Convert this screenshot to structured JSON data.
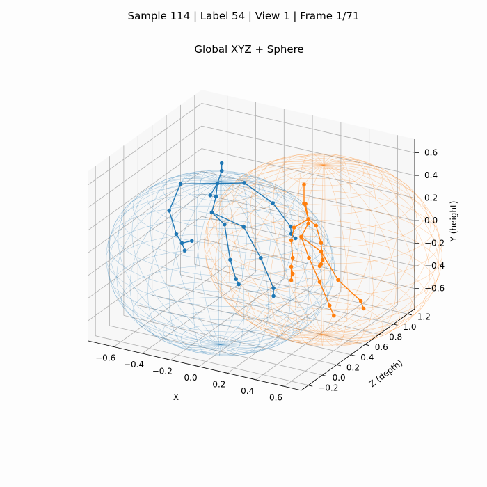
{
  "figure": {
    "suptitle": "Sample 114  |  Label 54  |  View 1  |  Frame 1/71",
    "title": "Global XYZ + Sphere"
  },
  "chart_data": {
    "type": "scatter3d",
    "xlabel": "X",
    "ylabel": "Y (height)",
    "zlabel": "Z (depth)",
    "x_ticks": [
      "−0.6",
      "−0.4",
      "−0.2",
      "0.0",
      "0.2",
      "0.4",
      "0.6"
    ],
    "y_ticks": [
      "−0.6",
      "−0.4",
      "−0.2",
      "0.0",
      "0.2",
      "0.4",
      "0.6"
    ],
    "z_ticks": [
      "−0.2",
      "0.0",
      "0.2",
      "0.4",
      "0.6",
      "0.8",
      "1.0",
      "1.2"
    ],
    "series": [
      {
        "color": "#1f77b4",
        "sphere": {
          "center": [
            0.0,
            0.0,
            0.0
          ],
          "radius": 0.72
        },
        "joints": [
          [
            -0.32,
            0.12,
            0.52
          ],
          [
            -0.28,
            0.28,
            0.5
          ],
          [
            -0.27,
            0.4,
            0.5
          ],
          [
            -0.24,
            0.52,
            0.5
          ],
          [
            -0.23,
            0.6,
            0.48
          ],
          [
            -0.48,
            0.38,
            0.4
          ],
          [
            -0.56,
            0.12,
            0.4
          ],
          [
            -0.5,
            -0.06,
            0.38
          ],
          [
            -0.47,
            -0.14,
            0.4
          ],
          [
            -0.45,
            -0.2,
            0.4
          ],
          [
            -0.08,
            0.46,
            0.5
          ],
          [
            0.12,
            0.34,
            0.5
          ],
          [
            0.22,
            0.14,
            0.55
          ],
          [
            0.22,
            0.07,
            0.56
          ],
          [
            0.25,
            0.04,
            0.56
          ],
          [
            -0.4,
            -0.1,
            0.4
          ],
          [
            -0.18,
            0.1,
            0.42
          ],
          [
            -0.14,
            -0.2,
            0.42
          ],
          [
            -0.1,
            -0.36,
            0.42
          ],
          [
            -0.08,
            -0.4,
            0.42
          ],
          [
            -0.06,
            0.1,
            0.45
          ],
          [
            0.06,
            -0.14,
            0.45
          ],
          [
            0.15,
            -0.38,
            0.45
          ],
          [
            0.15,
            -0.45,
            0.45
          ],
          [
            -0.32,
            0.28,
            0.5
          ]
        ],
        "bones": [
          [
            0,
            1
          ],
          [
            1,
            2
          ],
          [
            2,
            3
          ],
          [
            3,
            4
          ],
          [
            2,
            5
          ],
          [
            5,
            6
          ],
          [
            6,
            7
          ],
          [
            7,
            8
          ],
          [
            8,
            9
          ],
          [
            2,
            10
          ],
          [
            10,
            11
          ],
          [
            11,
            12
          ],
          [
            12,
            13
          ],
          [
            13,
            14
          ],
          [
            15,
            8
          ],
          [
            0,
            16
          ],
          [
            16,
            17
          ],
          [
            17,
            18
          ],
          [
            18,
            19
          ],
          [
            0,
            20
          ],
          [
            20,
            21
          ],
          [
            21,
            22
          ],
          [
            22,
            23
          ],
          [
            24,
            2
          ]
        ]
      },
      {
        "color": "#ff7f0e",
        "sphere": {
          "center": [
            0.45,
            0.0,
            0.55
          ],
          "radius": 0.75
        },
        "joints": [
          [
            0.32,
            0.1,
            0.5
          ],
          [
            0.36,
            0.22,
            0.52
          ],
          [
            0.36,
            0.26,
            0.52
          ],
          [
            0.34,
            0.4,
            0.5
          ],
          [
            0.35,
            0.58,
            0.48
          ],
          [
            0.28,
            0.18,
            0.48
          ],
          [
            0.26,
            0.06,
            0.48
          ],
          [
            0.28,
            -0.08,
            0.46
          ],
          [
            0.27,
            -0.16,
            0.46
          ],
          [
            0.28,
            -0.22,
            0.46
          ],
          [
            0.4,
            0.2,
            0.55
          ],
          [
            0.42,
            0.04,
            0.58
          ],
          [
            0.42,
            -0.12,
            0.6
          ],
          [
            0.41,
            -0.16,
            0.6
          ],
          [
            0.4,
            -0.18,
            0.6
          ],
          [
            0.27,
            -0.28,
            0.46
          ],
          [
            0.35,
            -0.1,
            0.55
          ],
          [
            0.4,
            -0.32,
            0.6
          ],
          [
            0.46,
            -0.52,
            0.62
          ],
          [
            0.49,
            -0.6,
            0.62
          ],
          [
            0.4,
            -0.06,
            0.62
          ],
          [
            0.5,
            -0.3,
            0.66
          ],
          [
            0.66,
            -0.44,
            0.66
          ],
          [
            0.68,
            -0.5,
            0.66
          ],
          [
            0.35,
            0.4,
            0.5
          ]
        ],
        "bones": [
          [
            0,
            1
          ],
          [
            1,
            2
          ],
          [
            2,
            3
          ],
          [
            3,
            4
          ],
          [
            2,
            5
          ],
          [
            5,
            6
          ],
          [
            6,
            7
          ],
          [
            7,
            8
          ],
          [
            8,
            9
          ],
          [
            2,
            10
          ],
          [
            10,
            11
          ],
          [
            11,
            12
          ],
          [
            12,
            13
          ],
          [
            13,
            14
          ],
          [
            15,
            8
          ],
          [
            0,
            16
          ],
          [
            16,
            17
          ],
          [
            17,
            18
          ],
          [
            18,
            19
          ],
          [
            0,
            20
          ],
          [
            20,
            21
          ],
          [
            21,
            22
          ],
          [
            22,
            23
          ],
          [
            24,
            2
          ]
        ]
      }
    ]
  }
}
